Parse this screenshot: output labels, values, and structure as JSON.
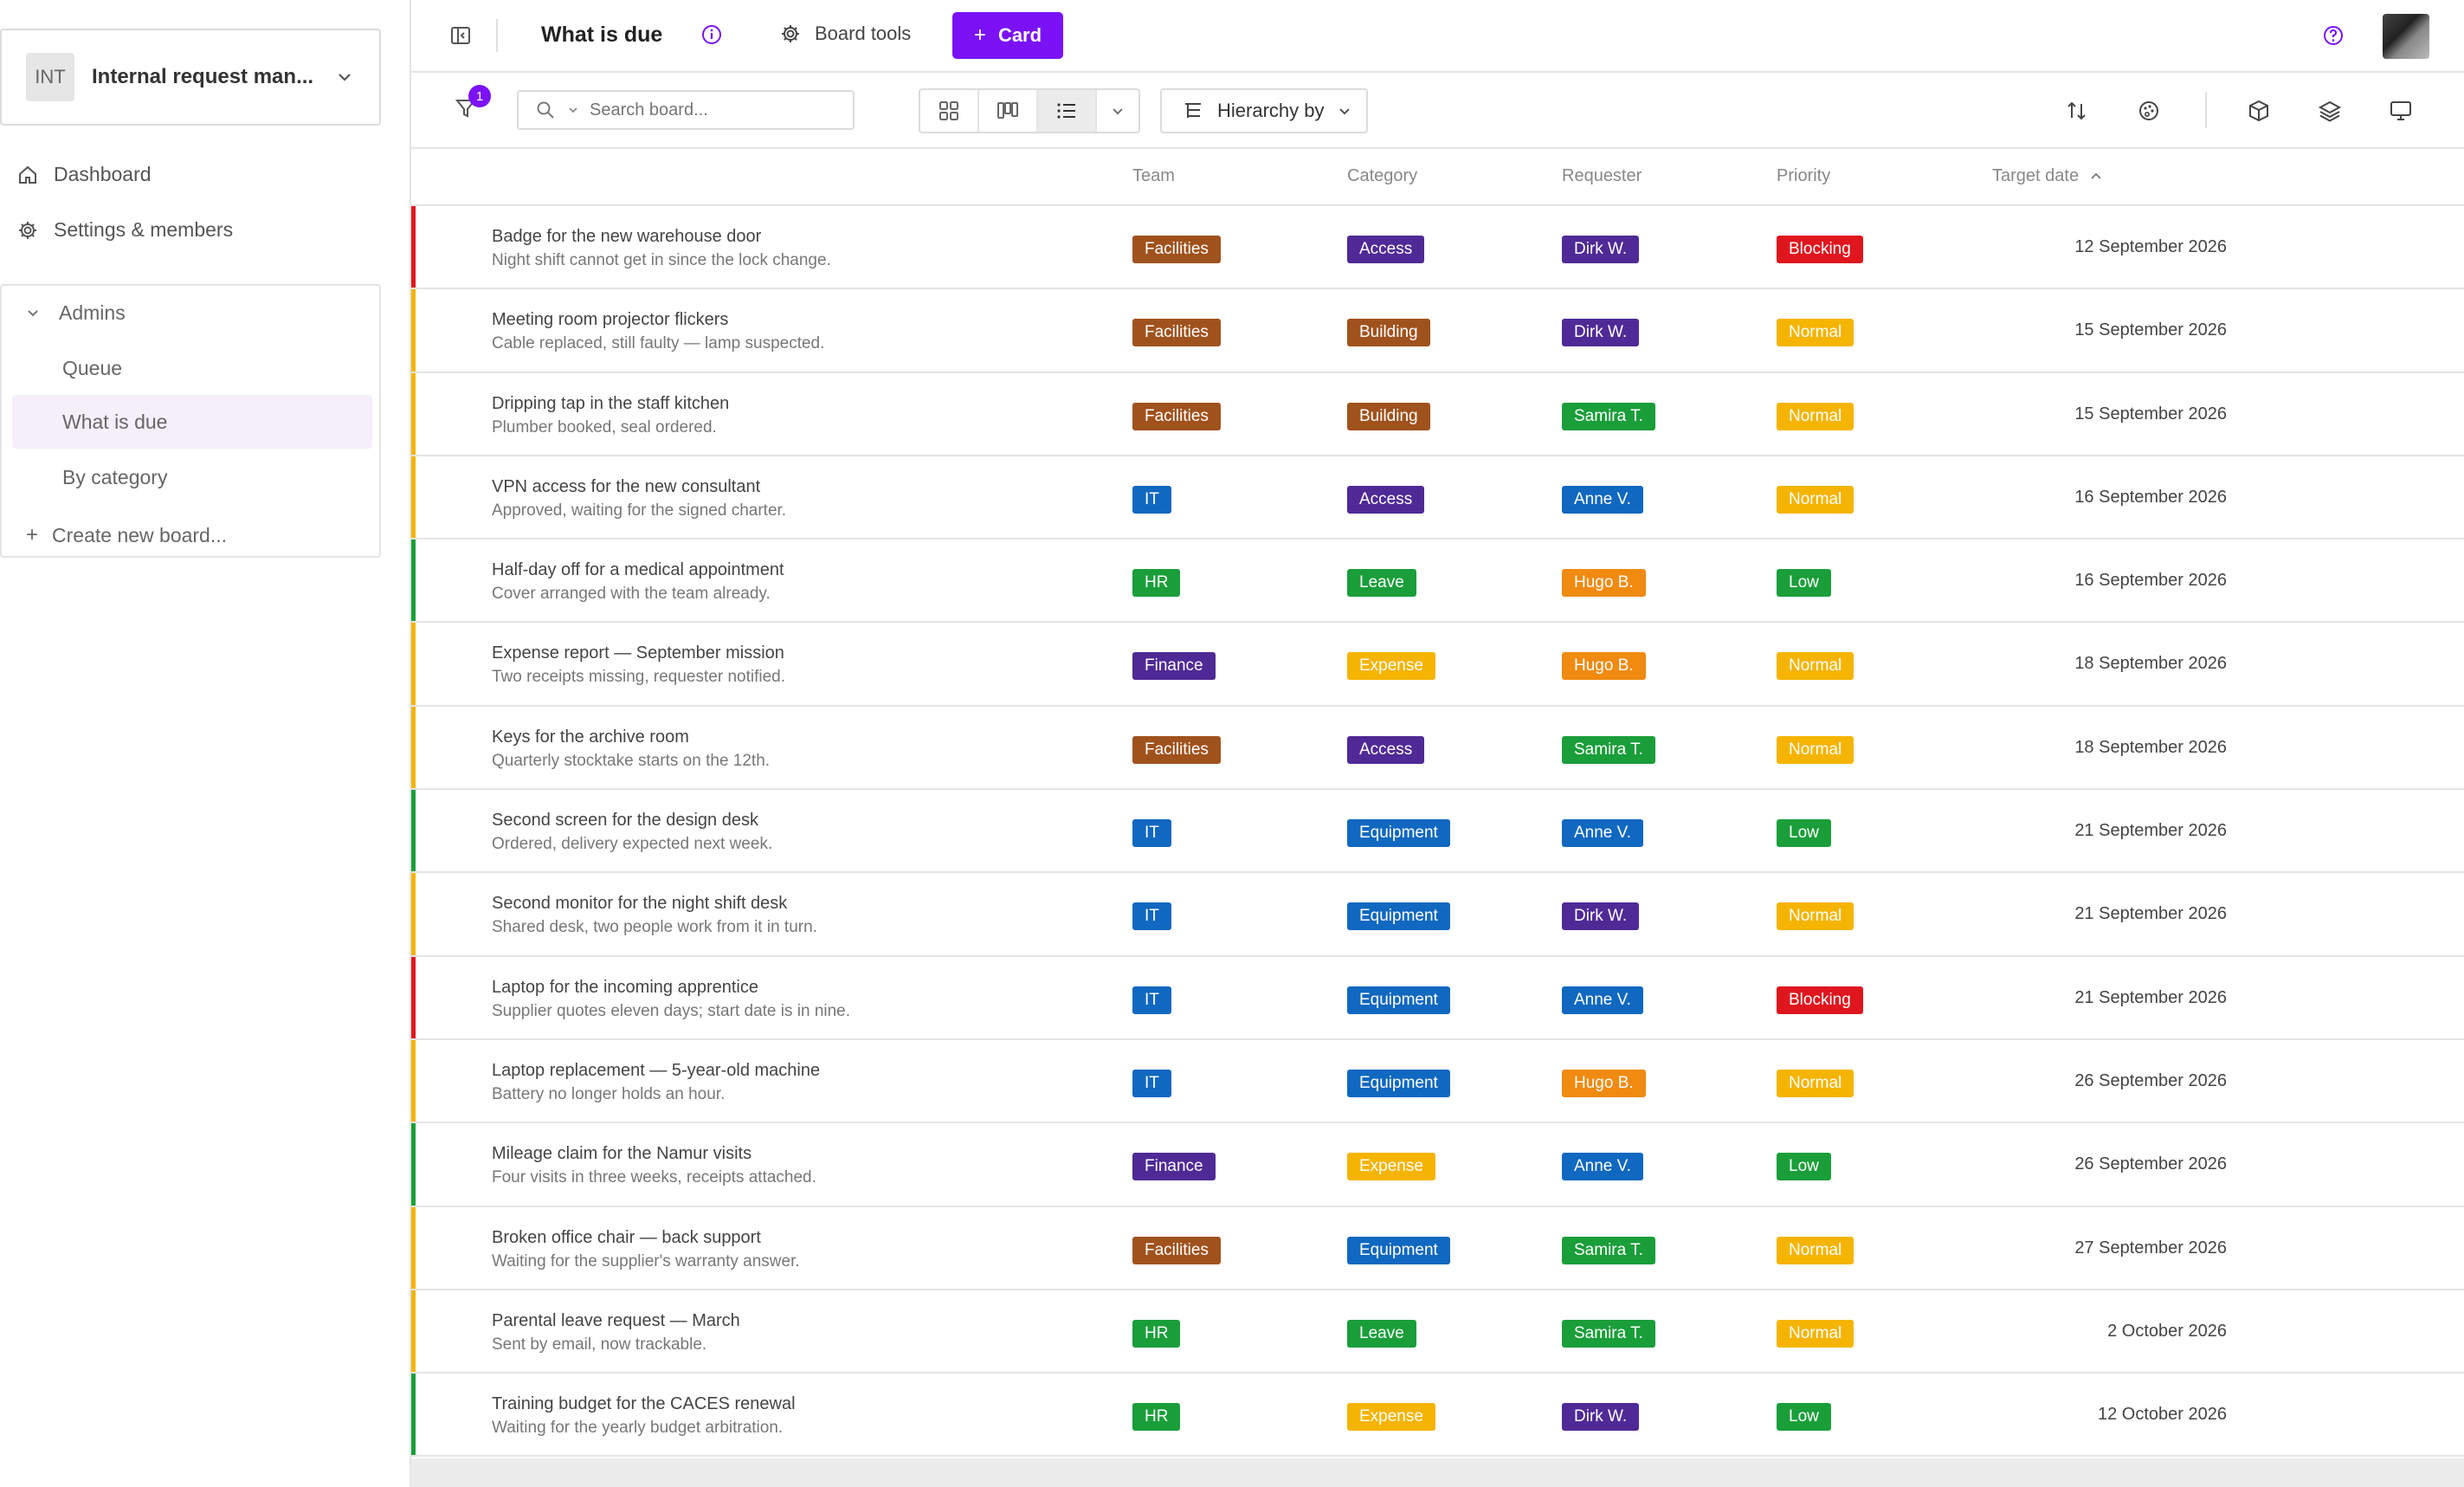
{
  "sidebar": {
    "workspace": {
      "badge": "INT",
      "name": "Internal request man..."
    },
    "nav": [
      {
        "label": "Dashboard",
        "icon": "home-icon"
      },
      {
        "label": "Settings & members",
        "icon": "gear-icon"
      }
    ],
    "group": {
      "label": "Admins",
      "items": [
        {
          "label": "Queue",
          "active": false
        },
        {
          "label": "What is due",
          "active": true
        },
        {
          "label": "By category",
          "active": false
        }
      ],
      "create_label": "Create new board..."
    }
  },
  "topbar": {
    "title": "What is due",
    "board_tools_label": "Board tools",
    "card_button_label": "Card"
  },
  "toolbar": {
    "filter_count": "1",
    "search_placeholder": "Search board...",
    "hierarchy_label": "Hierarchy by"
  },
  "table": {
    "columns": [
      "Team",
      "Category",
      "Requester",
      "Priority",
      "Target date"
    ],
    "rows": [
      {
        "title": "Badge for the new warehouse door",
        "desc": "Night shift cannot get in since the lock change.",
        "team": "Facilities",
        "category": "Access",
        "requester": "Dirk W.",
        "priority": "Blocking",
        "date": "12 September 2026"
      },
      {
        "title": "Meeting room projector flickers",
        "desc": "Cable replaced, still faulty — lamp suspected.",
        "team": "Facilities",
        "category": "Building",
        "requester": "Dirk W.",
        "priority": "Normal",
        "date": "15 September 2026"
      },
      {
        "title": "Dripping tap in the staff kitchen",
        "desc": "Plumber booked, seal ordered.",
        "team": "Facilities",
        "category": "Building",
        "requester": "Samira T.",
        "priority": "Normal",
        "date": "15 September 2026"
      },
      {
        "title": "VPN access for the new consultant",
        "desc": "Approved, waiting for the signed charter.",
        "team": "IT",
        "category": "Access",
        "requester": "Anne V.",
        "priority": "Normal",
        "date": "16 September 2026"
      },
      {
        "title": "Half-day off for a medical appointment",
        "desc": "Cover arranged with the team already.",
        "team": "HR",
        "category": "Leave",
        "requester": "Hugo B.",
        "priority": "Low",
        "date": "16 September 2026"
      },
      {
        "title": "Expense report — September mission",
        "desc": "Two receipts missing, requester notified.",
        "team": "Finance",
        "category": "Expense",
        "requester": "Hugo B.",
        "priority": "Normal",
        "date": "18 September 2026"
      },
      {
        "title": "Keys for the archive room",
        "desc": "Quarterly stocktake starts on the 12th.",
        "team": "Facilities",
        "category": "Access",
        "requester": "Samira T.",
        "priority": "Normal",
        "date": "18 September 2026"
      },
      {
        "title": "Second screen for the design desk",
        "desc": "Ordered, delivery expected next week.",
        "team": "IT",
        "category": "Equipment",
        "requester": "Anne V.",
        "priority": "Low",
        "date": "21 September 2026"
      },
      {
        "title": "Second monitor for the night shift desk",
        "desc": "Shared desk, two people work from it in turn.",
        "team": "IT",
        "category": "Equipment",
        "requester": "Dirk W.",
        "priority": "Normal",
        "date": "21 September 2026"
      },
      {
        "title": "Laptop for the incoming apprentice",
        "desc": "Supplier quotes eleven days; start date is in nine.",
        "team": "IT",
        "category": "Equipment",
        "requester": "Anne V.",
        "priority": "Blocking",
        "date": "21 September 2026"
      },
      {
        "title": "Laptop replacement — 5-year-old machine",
        "desc": "Battery no longer holds an hour.",
        "team": "IT",
        "category": "Equipment",
        "requester": "Hugo B.",
        "priority": "Normal",
        "date": "26 September 2026"
      },
      {
        "title": "Mileage claim for the Namur visits",
        "desc": "Four visits in three weeks, receipts attached.",
        "team": "Finance",
        "category": "Expense",
        "requester": "Anne V.",
        "priority": "Low",
        "date": "26 September 2026"
      },
      {
        "title": "Broken office chair — back support",
        "desc": "Waiting for the supplier's warranty answer.",
        "team": "Facilities",
        "category": "Equipment",
        "requester": "Samira T.",
        "priority": "Normal",
        "date": "27 September 2026"
      },
      {
        "title": "Parental leave request — March",
        "desc": "Sent by email, now trackable.",
        "team": "HR",
        "category": "Leave",
        "requester": "Samira T.",
        "priority": "Normal",
        "date": "2 October 2026"
      },
      {
        "title": "Training budget for the CACES renewal",
        "desc": "Waiting for the yearly budget arbitration.",
        "team": "HR",
        "category": "Expense",
        "requester": "Dirk W.",
        "priority": "Low",
        "date": "12 October 2026"
      }
    ]
  },
  "colors": {
    "accent": "#7a12f5",
    "team": {
      "Facilities": "#a0521d",
      "IT": "#1068c0",
      "HR": "#1a9e3a",
      "Finance": "#4f2a96"
    },
    "category": {
      "Access": "#4f2a96",
      "Building": "#a0521d",
      "Leave": "#1a9e3a",
      "Expense": "#f5b400",
      "Equipment": "#1068c0"
    },
    "requester": {
      "Dirk W.": "#4f2a96",
      "Samira T.": "#1a9e3a",
      "Anne V.": "#1068c0",
      "Hugo B.": "#f08a10"
    },
    "priority": {
      "Blocking": "#e0161e",
      "Normal": "#f5b400",
      "Low": "#1a9e3a"
    }
  }
}
